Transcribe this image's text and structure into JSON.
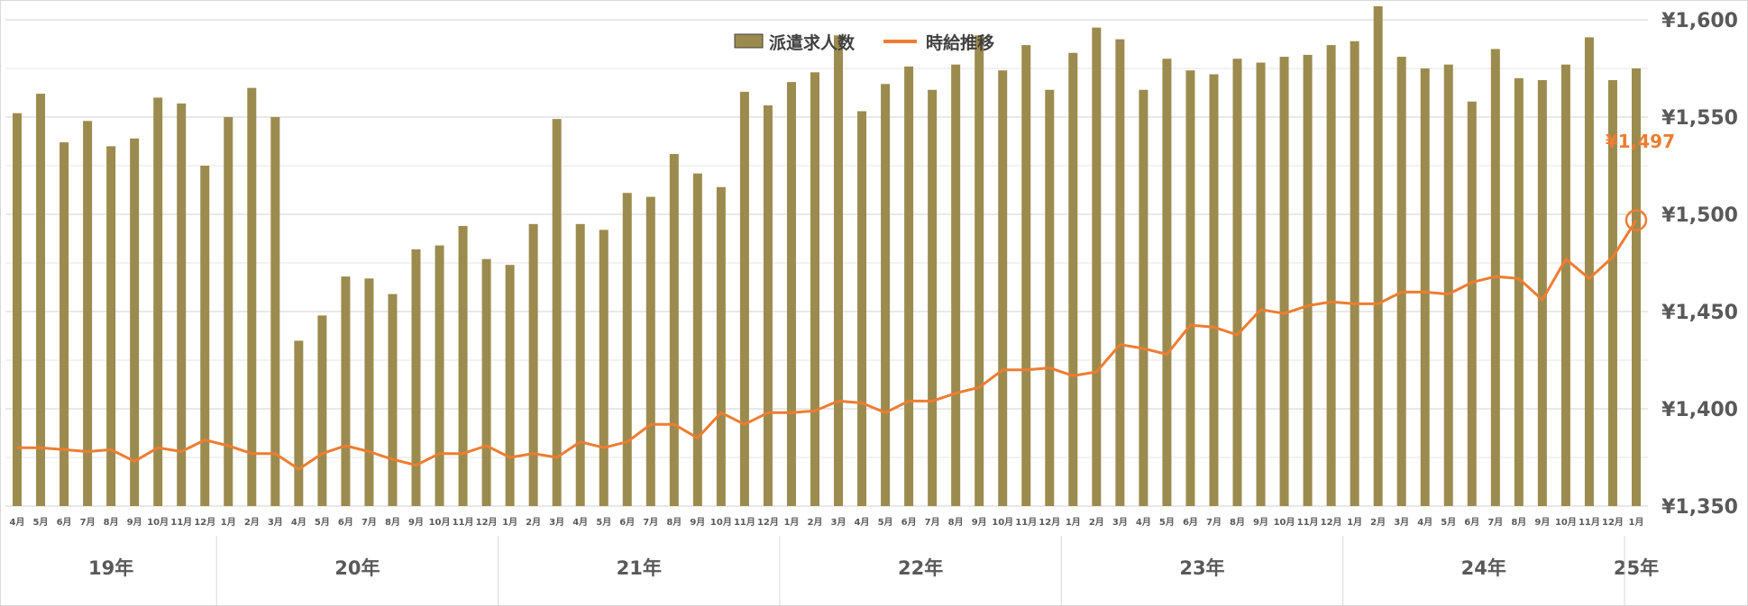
{
  "chart_data": {
    "type": "bar+line",
    "legend": {
      "placement": "top-center",
      "bar_label": "派遣求人数",
      "line_label": "時給推移"
    },
    "y_axis": {
      "position": "right",
      "range": [
        1350,
        1600
      ],
      "ticks": [
        1350,
        1400,
        1450,
        1500,
        1550,
        1600
      ],
      "tick_labels": [
        "¥1,350",
        "¥1,400",
        "¥1,450",
        "¥1,500",
        "¥1,550",
        "¥1,600"
      ]
    },
    "grid": true,
    "colors": {
      "bars": "#9C8B4E",
      "line": "#ED7D31",
      "grid": "#D9D9D9",
      "text": "#595959"
    },
    "months": [
      "4月",
      "5月",
      "6月",
      "7月",
      "8月",
      "9月",
      "10月",
      "11月",
      "12月",
      "1月",
      "2月",
      "3月",
      "4月",
      "5月",
      "6月",
      "7月",
      "8月",
      "9月",
      "10月",
      "11月",
      "12月",
      "1月",
      "2月",
      "3月",
      "4月",
      "5月",
      "6月",
      "7月",
      "8月",
      "9月",
      "10月",
      "11月",
      "12月",
      "1月",
      "2月",
      "3月",
      "4月",
      "5月",
      "6月",
      "7月",
      "8月",
      "9月",
      "10月",
      "11月",
      "12月",
      "1月",
      "2月",
      "3月",
      "4月",
      "5月",
      "6月",
      "7月",
      "8月",
      "9月",
      "10月",
      "11月",
      "12月",
      "1月",
      "2月",
      "3月",
      "4月",
      "5月",
      "6月",
      "7月",
      "8月",
      "9月",
      "10月",
      "11月",
      "12月",
      "1月"
    ],
    "years": [
      {
        "label": "19年",
        "start": 0,
        "end": 9
      },
      {
        "label": "20年",
        "start": 9,
        "end": 21
      },
      {
        "label": "21年",
        "start": 21,
        "end": 33
      },
      {
        "label": "22年",
        "start": 33,
        "end": 45
      },
      {
        "label": "23年",
        "start": 45,
        "end": 57
      },
      {
        "label": "24年",
        "start": 57,
        "end": 69
      },
      {
        "label": "25年",
        "start": 69,
        "end": 70
      }
    ],
    "bar_series": {
      "name": "派遣求人数",
      "note": "no numeric scale printed; values expressed on the right-axis scale for height",
      "values": [
        1552,
        1562,
        1537,
        1548,
        1535,
        1539,
        1560,
        1557,
        1525,
        1550,
        1565,
        1550,
        1435,
        1448,
        1468,
        1467,
        1459,
        1482,
        1484,
        1494,
        1477,
        1474,
        1495,
        1549,
        1495,
        1492,
        1511,
        1509,
        1531,
        1521,
        1514,
        1563,
        1556,
        1568,
        1573,
        1592,
        1553,
        1567,
        1576,
        1564,
        1577,
        1592,
        1574,
        1587,
        1564,
        1583,
        1596,
        1590,
        1564,
        1580,
        1574,
        1572,
        1580,
        1578,
        1581,
        1582,
        1587,
        1589,
        1607,
        1581,
        1575,
        1577,
        1558,
        1585,
        1570,
        1569,
        1577,
        1591,
        1569,
        1575
      ]
    },
    "line_series": {
      "name": "時給推移",
      "values": [
        1380,
        1380,
        1379,
        1378,
        1379,
        1373,
        1380,
        1378,
        1384,
        1381,
        1377,
        1377,
        1369,
        1377,
        1381,
        1378,
        1374,
        1371,
        1377,
        1377,
        1381,
        1375,
        1377,
        1375,
        1383,
        1380,
        1383,
        1392,
        1392,
        1385,
        1398,
        1392,
        1398,
        1398,
        1399,
        1404,
        1403,
        1398,
        1404,
        1404,
        1408,
        1411,
        1420,
        1420,
        1421,
        1417,
        1419,
        1433,
        1431,
        1428,
        1443,
        1442,
        1438,
        1451,
        1449,
        1453,
        1455,
        1454,
        1454,
        1460,
        1460,
        1459,
        1465,
        1468,
        1467,
        1456,
        1477,
        1467,
        1478,
        1497
      ]
    },
    "annotation": {
      "label": "¥1,497",
      "index": 69,
      "value": 1497
    }
  }
}
